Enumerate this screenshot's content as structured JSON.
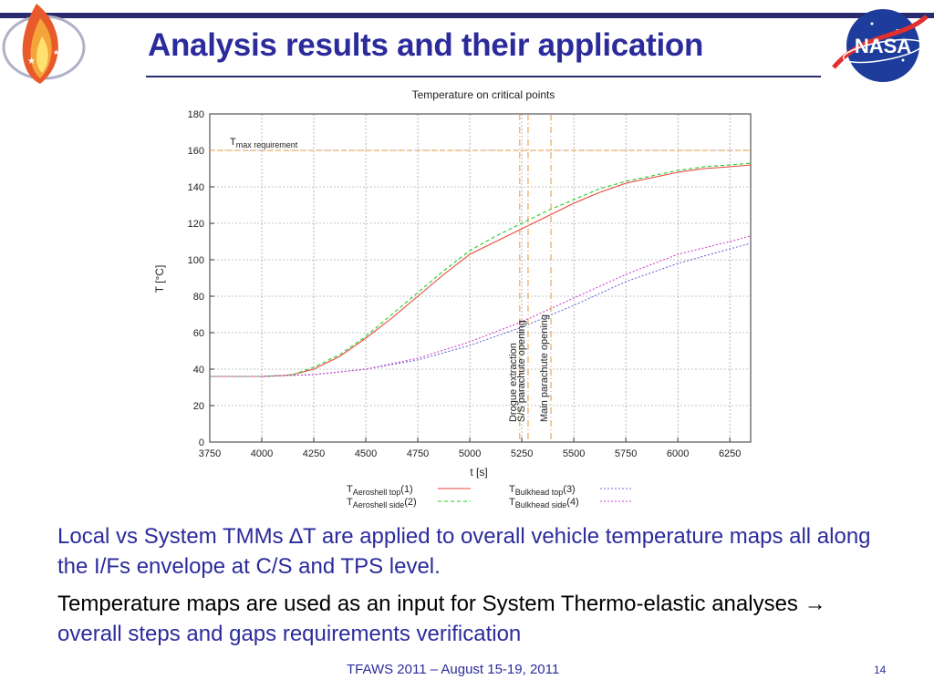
{
  "slide": {
    "title": "Analysis results and their application",
    "footer": "TFAWS 2011 – August 15-19, 2011",
    "page_number": "14",
    "logo_nasa_text": "NASA"
  },
  "text": {
    "p1": "Local vs System TMMs ∆T are applied to overall vehicle temperature maps all along the I/Fs envelope at C/S and TPS level.",
    "p2_black": "Temperature maps are used as an input for System Thermo-elastic analyses → ",
    "p2_blue": "overall steps and gaps requirements verification"
  },
  "colors": {
    "title_blue": "#2b2b9c",
    "bar_navy": "#2a2a6e",
    "series_1": "#e8463c",
    "series_2": "#22cc22",
    "series_3": "#6a6ad8",
    "series_4": "#cc44cc",
    "event_line": "#e8963c"
  },
  "chart_data": {
    "type": "line",
    "title": "Temperature on critical points",
    "xlabel": "t [s]",
    "ylabel": "T [°C]",
    "xlim": [
      3750,
      6350
    ],
    "ylim": [
      0,
      180
    ],
    "xticks": [
      3750,
      4000,
      4250,
      4500,
      4750,
      5000,
      5250,
      5500,
      5750,
      6000,
      6250
    ],
    "yticks": [
      0,
      20,
      40,
      60,
      80,
      100,
      120,
      140,
      160,
      180
    ],
    "grid": true,
    "legend_position": "bottom",
    "requirement": {
      "label_main": "T",
      "label_sub": "max requirement",
      "value": 160
    },
    "events": [
      {
        "label": "Drogue extraction",
        "x": 5240
      },
      {
        "label": "S/S parachute opening",
        "x": 5280
      },
      {
        "label": "Main parachute opening",
        "x": 5390
      }
    ],
    "series": [
      {
        "name_main": "T",
        "name_sub": "Aeroshell top",
        "name_suffix": "(1)",
        "style": "solid",
        "x": [
          3750,
          4000,
          4100,
          4150,
          4250,
          4375,
          4500,
          4625,
          4750,
          4875,
          5000,
          5125,
          5250,
          5375,
          5500,
          5625,
          5750,
          5875,
          6000,
          6125,
          6250,
          6350
        ],
        "y": [
          36,
          36,
          36.5,
          37,
          40,
          47,
          57,
          68,
          80,
          92,
          103,
          110,
          117,
          124,
          131,
          137,
          142,
          145,
          148,
          150,
          151,
          152
        ]
      },
      {
        "name_main": "T",
        "name_sub": "Aeroshell side",
        "name_suffix": "(2)",
        "style": "dashed",
        "x": [
          3750,
          4000,
          4100,
          4150,
          4250,
          4375,
          4500,
          4625,
          4750,
          4875,
          5000,
          5125,
          5250,
          5375,
          5500,
          5625,
          5750,
          5875,
          6000,
          6125,
          6250,
          6350
        ],
        "y": [
          36,
          36,
          36.5,
          37,
          41,
          48,
          58,
          70,
          82,
          94,
          105,
          113,
          120,
          127,
          133,
          139,
          143,
          146,
          149,
          151,
          152,
          153
        ]
      },
      {
        "name_main": "T",
        "name_sub": "Bulkhead top",
        "name_suffix": "(3)",
        "style": "dotted",
        "x": [
          3750,
          4000,
          4250,
          4500,
          4750,
          5000,
          5250,
          5500,
          5750,
          6000,
          6250,
          6350
        ],
        "y": [
          36,
          36,
          37,
          40,
          45,
          53,
          63,
          75,
          88,
          98,
          106,
          109
        ]
      },
      {
        "name_main": "T",
        "name_sub": "Bulkhead side",
        "name_suffix": "(4)",
        "style": "dotted",
        "x": [
          3750,
          4000,
          4250,
          4500,
          4750,
          5000,
          5250,
          5500,
          5750,
          6000,
          6250,
          6350
        ],
        "y": [
          36,
          36,
          37,
          40,
          46,
          55,
          66,
          79,
          92,
          103,
          110,
          113
        ]
      }
    ]
  }
}
